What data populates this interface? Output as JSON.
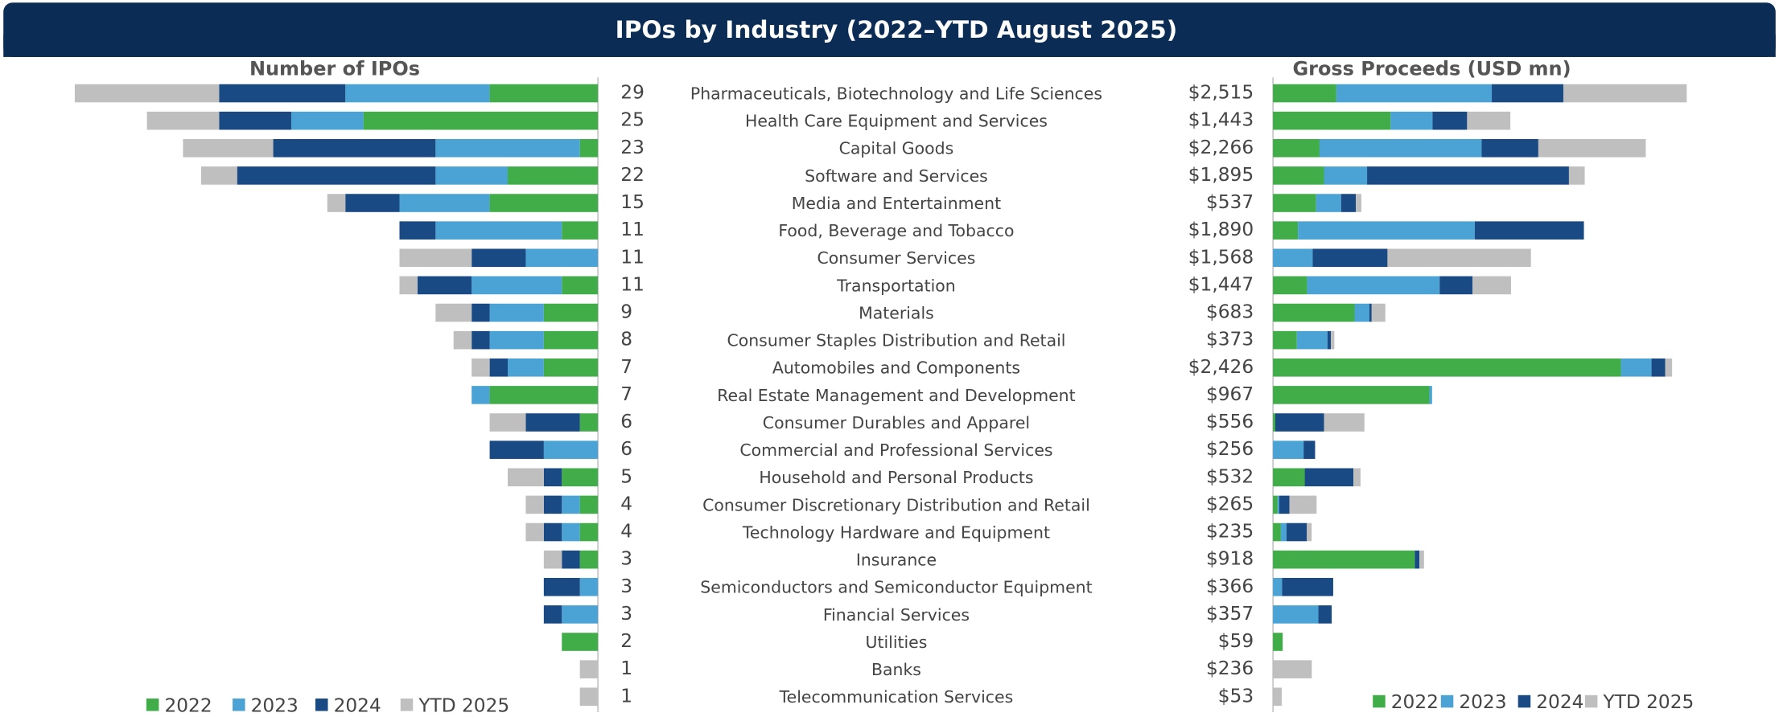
{
  "title": "IPOs by Industry (2022–YTD August 2025)",
  "chart_data": [
    {
      "type": "bar",
      "orientation": "horizontal",
      "stacked": true,
      "direction": "left",
      "title": "Number of IPOs",
      "categories": [
        "Pharmaceuticals, Biotechnology and Life Sciences",
        "Health Care Equipment and Services",
        "Capital Goods",
        "Software and Services",
        "Media and Entertainment",
        "Food, Beverage and Tobacco",
        "Consumer Services",
        "Transportation",
        "Materials",
        "Consumer Staples Distribution and Retail",
        "Automobiles and Components",
        "Real Estate Management and Development",
        "Consumer Durables and Apparel",
        "Commercial and Professional Services",
        "Household and Personal Products",
        "Consumer Discretionary Distribution and Retail",
        "Technology Hardware and Equipment",
        "Insurance",
        "Semiconductors and Semiconductor Equipment",
        "Financial Services",
        "Utilities",
        "Banks",
        "Telecommunication Services"
      ],
      "xlim": [
        0,
        30
      ],
      "series": [
        {
          "name": "2022",
          "color": "#41ad49",
          "values": [
            6,
            13,
            1,
            5,
            6,
            2,
            0,
            2,
            3,
            3,
            3,
            6,
            1,
            0,
            2,
            1,
            1,
            1,
            0,
            0,
            2,
            0,
            0
          ]
        },
        {
          "name": "2023",
          "color": "#4aa3d4",
          "values": [
            8,
            4,
            8,
            4,
            5,
            7,
            4,
            5,
            3,
            3,
            2,
            1,
            0,
            3,
            0,
            1,
            1,
            0,
            1,
            2,
            0,
            0,
            0
          ]
        },
        {
          "name": "2024",
          "color": "#1a4a84",
          "values": [
            7,
            4,
            9,
            11,
            3,
            2,
            3,
            3,
            1,
            1,
            1,
            0,
            3,
            3,
            1,
            1,
            1,
            1,
            2,
            1,
            0,
            0,
            0
          ]
        },
        {
          "name": "YTD 2025",
          "color": "#bfbfbf",
          "values": [
            8,
            4,
            5,
            2,
            1,
            0,
            4,
            1,
            2,
            1,
            1,
            0,
            2,
            0,
            2,
            1,
            1,
            1,
            0,
            0,
            0,
            1,
            1
          ]
        }
      ],
      "totals": [
        29,
        25,
        23,
        22,
        15,
        11,
        11,
        11,
        9,
        8,
        7,
        7,
        6,
        6,
        5,
        4,
        4,
        3,
        3,
        3,
        2,
        1,
        1
      ]
    },
    {
      "type": "bar",
      "orientation": "horizontal",
      "stacked": true,
      "direction": "right",
      "title": "Gross Proceeds (USD mn)",
      "xlim": [
        0,
        2600
      ],
      "series": [
        {
          "name": "2022",
          "color": "#41ad49",
          "values": [
            385,
            715,
            283,
            310,
            262,
            152,
            0,
            207,
            496,
            145,
            2115,
            951,
            14,
            0,
            193,
            28,
            48,
            862,
            0,
            0,
            59,
            0,
            0
          ]
        },
        {
          "name": "2023",
          "color": "#4aa3d4",
          "values": [
            945,
            255,
            985,
            262,
            152,
            1075,
            241,
            806,
            90,
            186,
            186,
            16,
            0,
            186,
            0,
            10,
            34,
            0,
            55,
            276,
            0,
            0,
            0
          ]
        },
        {
          "name": "2024",
          "color": "#1a4a84",
          "values": [
            435,
            210,
            345,
            1227,
            90,
            663,
            455,
            200,
            14,
            21,
            83,
            0,
            296,
            70,
            296,
            62,
            124,
            28,
            311,
            81,
            0,
            0,
            0
          ]
        },
        {
          "name": "YTD 2025",
          "color": "#bfbfbf",
          "values": [
            750,
            263,
            653,
            96,
            33,
            0,
            872,
            234,
            83,
            21,
            42,
            0,
            246,
            0,
            43,
            165,
            29,
            28,
            0,
            0,
            0,
            236,
            53
          ]
        }
      ],
      "total_labels": [
        "$2,515",
        "$1,443",
        "$2,266",
        "$1,895",
        "$537",
        "$1,890",
        "$1,568",
        "$1,447",
        "$683",
        "$373",
        "$2,426",
        "$967",
        "$556",
        "$256",
        "$532",
        "$265",
        "$235",
        "$918",
        "$366",
        "$357",
        "$59",
        "$236",
        "$53"
      ]
    }
  ]
}
